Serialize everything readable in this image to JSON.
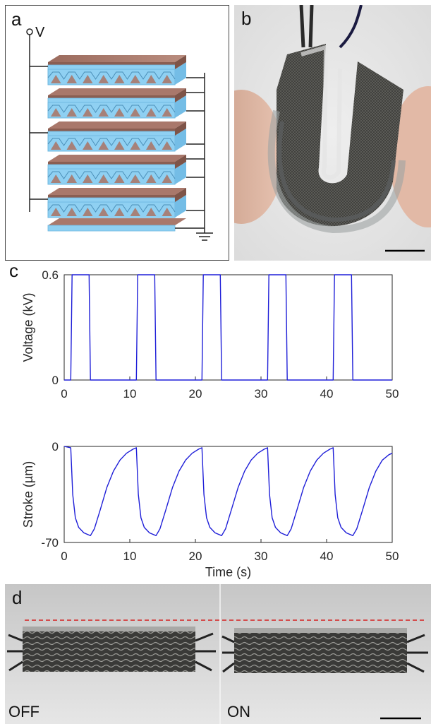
{
  "panels": {
    "a": {
      "label": "a",
      "voltage_label": "V"
    },
    "b": {
      "label": "b"
    },
    "c": {
      "label": "c"
    },
    "d": {
      "label": "d",
      "off_label": "OFF",
      "on_label": "ON"
    }
  },
  "colors": {
    "trace": "#1f1fd8",
    "electrode": "#a9786b",
    "film": "#8fd0f2",
    "dashed_line": "#d62020"
  },
  "chart_data": [
    {
      "type": "line",
      "title": "",
      "xlabel": "",
      "ylabel": "Voltage (kV)",
      "xlim": [
        0,
        50
      ],
      "ylim": [
        0,
        0.6
      ],
      "xticks": [
        "0",
        "10",
        "20",
        "30",
        "40",
        "50"
      ],
      "yticks": [
        "0",
        "0.6"
      ],
      "x": [
        0,
        1.0,
        1.2,
        3.8,
        4.0,
        11.0,
        11.2,
        13.8,
        14.0,
        21.0,
        21.2,
        23.8,
        24.0,
        31.0,
        31.2,
        33.8,
        34.0,
        41.0,
        41.2,
        43.8,
        44.0,
        50
      ],
      "values": [
        0,
        0,
        0.6,
        0.6,
        0,
        0,
        0.6,
        0.6,
        0,
        0,
        0.6,
        0.6,
        0,
        0,
        0.6,
        0.6,
        0,
        0,
        0.6,
        0.6,
        0,
        0
      ],
      "grid": false
    },
    {
      "type": "line",
      "title": "",
      "xlabel": "Time (s)",
      "ylabel": "Stroke (µm)",
      "xlim": [
        0,
        50
      ],
      "ylim": [
        -70,
        0
      ],
      "xticks": [
        "0",
        "10",
        "20",
        "30",
        "40",
        "50"
      ],
      "yticks": [
        "-70",
        "0"
      ],
      "x": [
        0,
        1,
        1.3,
        1.7,
        2.2,
        3.0,
        4.0,
        4.6,
        5.5,
        6.5,
        7.5,
        8.5,
        9.5,
        10.5,
        11.0,
        11.3,
        11.7,
        12.2,
        13.0,
        14.0,
        14.6,
        15.5,
        16.5,
        17.5,
        18.5,
        19.5,
        20.5,
        21.0,
        21.3,
        21.7,
        22.2,
        23.0,
        24.0,
        24.6,
        25.5,
        26.5,
        27.5,
        28.5,
        29.5,
        30.5,
        31.0,
        31.3,
        31.7,
        32.2,
        33.0,
        34.0,
        34.6,
        35.5,
        36.5,
        37.5,
        38.5,
        39.5,
        40.5,
        41.0,
        41.3,
        41.7,
        42.2,
        43.0,
        44.0,
        44.6,
        45.5,
        46.5,
        47.5,
        48.5,
        49.5,
        50.0
      ],
      "values": [
        0,
        -1,
        -35,
        -52,
        -59,
        -63,
        -65,
        -60,
        -46,
        -30,
        -18,
        -10,
        -5,
        -2,
        -1,
        -35,
        -52,
        -59,
        -63,
        -65,
        -60,
        -46,
        -30,
        -18,
        -10,
        -5,
        -2,
        -1,
        -35,
        -52,
        -59,
        -63,
        -65,
        -60,
        -46,
        -30,
        -18,
        -10,
        -5,
        -2,
        -1,
        -35,
        -52,
        -59,
        -63,
        -65,
        -60,
        -46,
        -30,
        -18,
        -10,
        -5,
        -2,
        -1,
        -35,
        -52,
        -59,
        -63,
        -65,
        -60,
        -46,
        -30,
        -18,
        -10,
        -6,
        -5
      ],
      "grid": false
    }
  ]
}
